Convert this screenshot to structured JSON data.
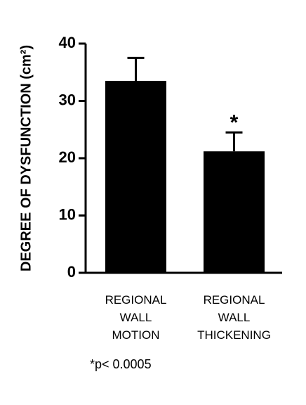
{
  "chart_data": {
    "type": "bar",
    "ylabel": "DEGREE OF DYSFUNCTION (cm²)",
    "categories": [
      "REGIONAL\nWALL\nMOTION",
      "REGIONAL\nWALL\nTHICKENING"
    ],
    "values": [
      33.5,
      21.2
    ],
    "errors": [
      4,
      3.3
    ],
    "color": "#000000",
    "ylim": [
      0,
      40
    ],
    "yticks": [
      0,
      10,
      20,
      30,
      40
    ],
    "grid": false,
    "annotations": [
      {
        "text": "*",
        "category": 1
      }
    ],
    "footnote": "*p< 0.0005"
  }
}
